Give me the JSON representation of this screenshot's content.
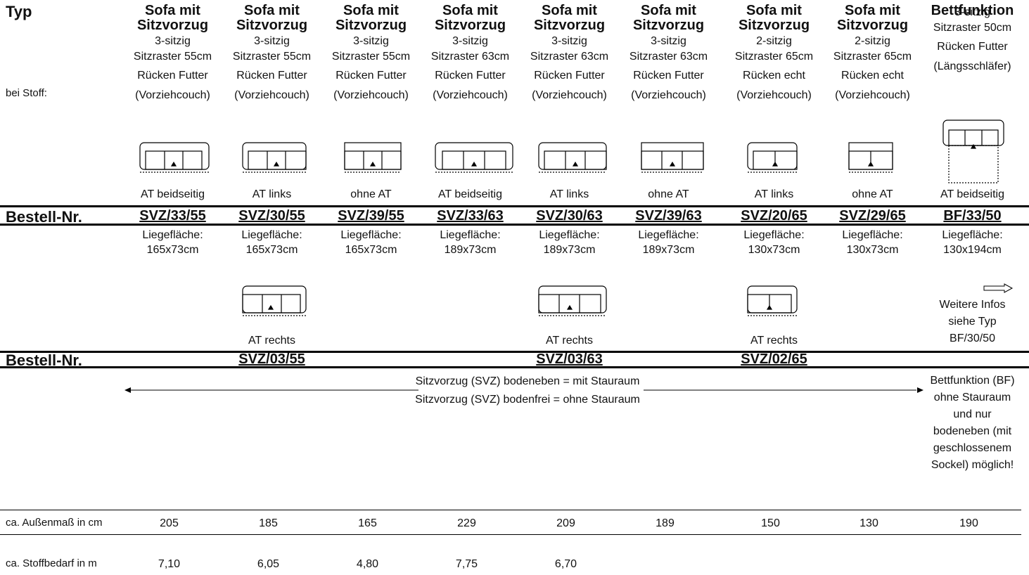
{
  "labels": {
    "typ": "Typ",
    "bei_stoff": "bei Stoff:",
    "bestell_nr_1": "Bestell-Nr.",
    "bestell_nr_2": "Bestell-Nr.",
    "aussenmass": "ca. Außenmaß in cm",
    "stoffbedarf": "ca. Stoffbedarf in m"
  },
  "columns": [
    {
      "t1": "Sofa mit",
      "t2": "Sitzvorzug",
      "l1": "3-sitzig",
      "l2": "Sitzraster 55cm",
      "l3": "Rücken Futter",
      "l4": "(Vorziehcouch)",
      "at": "AT beidseitig",
      "order": "SVZ/33/55",
      "lf1": "Liegefläche:",
      "lf2": "165x73cm",
      "mass": "205",
      "stoff": "7,10"
    },
    {
      "t1": "Sofa mit",
      "t2": "Sitzvorzug",
      "l1": "3-sitzig",
      "l2": "Sitzraster 55cm",
      "l3": "Rücken Futter",
      "l4": "(Vorziehcouch)",
      "at": "AT links",
      "order": "SVZ/30/55",
      "lf1": "Liegefläche:",
      "lf2": "165x73cm",
      "mass": "185",
      "stoff": "6,05",
      "at2": "AT rechts",
      "order2": "SVZ/03/55"
    },
    {
      "t1": "Sofa mit",
      "t2": "Sitzvorzug",
      "l1": "3-sitzig",
      "l2": "Sitzraster 55cm",
      "l3": "Rücken Futter",
      "l4": "(Vorziehcouch)",
      "at": "ohne AT",
      "order": "SVZ/39/55",
      "lf1": "Liegefläche:",
      "lf2": "165x73cm",
      "mass": "165",
      "stoff": "4,80"
    },
    {
      "t1": "Sofa mit",
      "t2": "Sitzvorzug",
      "l1": "3-sitzig",
      "l2": "Sitzraster 63cm",
      "l3": "Rücken Futter",
      "l4": "(Vorziehcouch)",
      "at": "AT beidseitig",
      "order": "SVZ/33/63",
      "lf1": "Liegefläche:",
      "lf2": "189x73cm",
      "mass": "229",
      "stoff": "7,75"
    },
    {
      "t1": "Sofa mit",
      "t2": "Sitzvorzug",
      "l1": "3-sitzig",
      "l2": "Sitzraster 63cm",
      "l3": "Rücken Futter",
      "l4": "(Vorziehcouch)",
      "at": "AT links",
      "order": "SVZ/30/63",
      "lf1": "Liegefläche:",
      "lf2": "189x73cm",
      "mass": "209",
      "stoff": "6,70",
      "at2": "AT rechts",
      "order2": "SVZ/03/63"
    },
    {
      "t1": "Sofa mit",
      "t2": "Sitzvorzug",
      "l1": "3-sitzig",
      "l2": "Sitzraster 63cm",
      "l3": "Rücken Futter",
      "l4": "(Vorziehcouch)",
      "at": "ohne AT",
      "order": "SVZ/39/63",
      "lf1": "Liegefläche:",
      "lf2": "189x73cm",
      "mass": "189",
      "stoff": ""
    },
    {
      "t1": "Sofa mit",
      "t2": "Sitzvorzug",
      "l1": "2-sitzig",
      "l2": "Sitzraster 65cm",
      "l3": "Rücken echt",
      "l4": "(Vorziehcouch)",
      "at": "AT links",
      "order": "SVZ/20/65",
      "lf1": "Liegefläche:",
      "lf2": "130x73cm",
      "mass": "150",
      "stoff": "",
      "at2": "AT rechts",
      "order2": "SVZ/02/65"
    },
    {
      "t1": "Sofa mit",
      "t2": "Sitzvorzug",
      "l1": "2-sitzig",
      "l2": "Sitzraster 65cm",
      "l3": "Rücken echt",
      "l4": "(Vorziehcouch)",
      "at": "ohne AT",
      "order": "SVZ/29/65",
      "lf1": "Liegefläche:",
      "lf2": "130x73cm",
      "mass": "130",
      "stoff": ""
    },
    {
      "t1": "Bettfunktion",
      "t2": "",
      "l1": "3-sitzig",
      "l2": "Sitzraster 50cm",
      "l3": "Rücken Futter",
      "l4": "(Längsschläfer)",
      "at": "AT beidseitig",
      "order": "BF/33/50",
      "lf1": "Liegefläche:",
      "lf2": "130x194cm",
      "mass": "190",
      "stoff": ""
    }
  ],
  "bf_info": {
    "line1": "Weitere Infos",
    "line2": "siehe Typ",
    "line3": "BF/30/50"
  },
  "svz_note": {
    "line1": "Sitzvorzug (SVZ) bodeneben = mit Stauraum",
    "line2": "Sitzvorzug (SVZ) bodenfrei = ohne Stauraum"
  },
  "bf_note": {
    "line1": "Bettfunktion (BF)",
    "line2": "ohne Stauraum",
    "line3": "und nur",
    "line4": "bodeneben (mit",
    "line5": "geschlossenem",
    "line6": "Sockel) möglich!"
  }
}
